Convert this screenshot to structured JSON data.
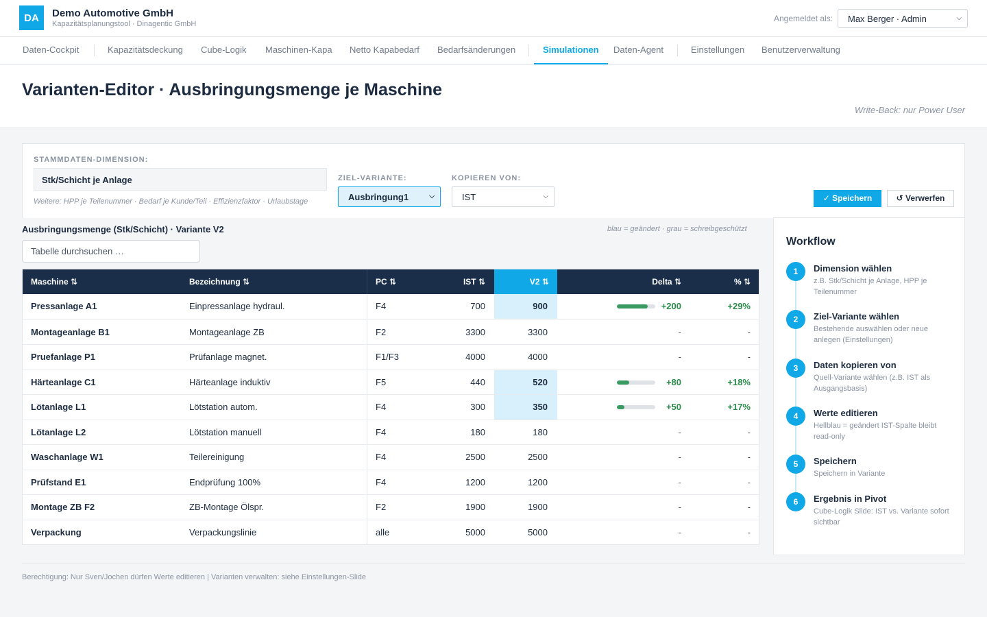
{
  "header": {
    "logo": "DA",
    "company": "Demo Automotive GmbH",
    "subtitle": "Kapazitätsplanungstool · Dinagentic GmbH",
    "login_label": "Angemeldet als:",
    "user": "Max Berger · Admin"
  },
  "nav": {
    "items": [
      {
        "label": "Daten-Cockpit"
      },
      {
        "label": "Kapazitätsdeckung"
      },
      {
        "label": "Cube-Logik"
      },
      {
        "label": "Maschinen-Kapa"
      },
      {
        "label": "Netto Kapabedarf"
      },
      {
        "label": "Bedarfsänderungen"
      },
      {
        "label": "Simulationen"
      },
      {
        "label": "Daten-Agent"
      },
      {
        "label": "Einstellungen"
      },
      {
        "label": "Benutzerverwaltung"
      }
    ],
    "active": "Simulationen"
  },
  "page": {
    "title": "Varianten-Editor · Ausbringungsmenge je Maschine",
    "writeback": "Write-Back: nur Power User"
  },
  "controls": {
    "dim_label": "STAMMDATEN-DIMENSION:",
    "dim_value": "Stk/Schicht je Anlage",
    "dim_hint": "Weitere: HPP je Teilenummer · Bedarf je Kunde/Teil · Effizienzfaktor · Urlaubstage",
    "target_label": "ZIEL-VARIANTE:",
    "target_value": "Ausbringung1",
    "copy_label": "KOPIEREN VON:",
    "copy_value": "IST",
    "save": "✓ Speichern",
    "discard": "↺ Verwerfen"
  },
  "table": {
    "title": "Ausbringungsmenge (Stk/Schicht) · Variante V2",
    "legend": "blau = geändert · grau = schreibgeschützt",
    "search_placeholder": "Tabelle durchsuchen …",
    "headers": {
      "maschine": "Maschine ⇅",
      "bezeichnung": "Bezeichnung ⇅",
      "pc": "PC ⇅",
      "ist": "IST ⇅",
      "v2": "V2 ⇅",
      "delta": "Delta ⇅",
      "pct": "% ⇅"
    },
    "rows": [
      {
        "maschine": "Pressanlage A1",
        "bezeichnung": "Einpressanlage hydraul.",
        "pc": "F4",
        "ist": "700",
        "v2": "900",
        "delta": "+200",
        "pct": "+29%",
        "changed": true,
        "bar": 0.8
      },
      {
        "maschine": "Montageanlage B1",
        "bezeichnung": "Montageanlage ZB",
        "pc": "F2",
        "ist": "3300",
        "v2": "3300",
        "delta": "-",
        "pct": "-",
        "changed": false,
        "bar": 0
      },
      {
        "maschine": "Pruefanlage P1",
        "bezeichnung": "Prüfanlage magnet.",
        "pc": "F1/F3",
        "ist": "4000",
        "v2": "4000",
        "delta": "-",
        "pct": "-",
        "changed": false,
        "bar": 0
      },
      {
        "maschine": "Härteanlage C1",
        "bezeichnung": "Härteanlage induktiv",
        "pc": "F5",
        "ist": "440",
        "v2": "520",
        "delta": "+80",
        "pct": "+18%",
        "changed": true,
        "bar": 0.32
      },
      {
        "maschine": "Lötanlage L1",
        "bezeichnung": "Lötstation autom.",
        "pc": "F4",
        "ist": "300",
        "v2": "350",
        "delta": "+50",
        "pct": "+17%",
        "changed": true,
        "bar": 0.2
      },
      {
        "maschine": "Lötanlage L2",
        "bezeichnung": "Lötstation manuell",
        "pc": "F4",
        "ist": "180",
        "v2": "180",
        "delta": "-",
        "pct": "-",
        "changed": false,
        "bar": 0
      },
      {
        "maschine": "Waschanlage W1",
        "bezeichnung": "Teilereinigung",
        "pc": "F4",
        "ist": "2500",
        "v2": "2500",
        "delta": "-",
        "pct": "-",
        "changed": false,
        "bar": 0
      },
      {
        "maschine": "Prüfstand E1",
        "bezeichnung": "Endprüfung 100%",
        "pc": "F4",
        "ist": "1200",
        "v2": "1200",
        "delta": "-",
        "pct": "-",
        "changed": false,
        "bar": 0
      },
      {
        "maschine": "Montage ZB F2",
        "bezeichnung": "ZB-Montage Ölspr.",
        "pc": "F2",
        "ist": "1900",
        "v2": "1900",
        "delta": "-",
        "pct": "-",
        "changed": false,
        "bar": 0
      },
      {
        "maschine": "Verpackung",
        "bezeichnung": "Verpackungslinie",
        "pc": "alle",
        "ist": "5000",
        "v2": "5000",
        "delta": "-",
        "pct": "-",
        "changed": false,
        "bar": 0
      }
    ]
  },
  "workflow": {
    "title": "Workflow",
    "steps": [
      {
        "num": "1",
        "title": "Dimension wählen",
        "desc": "z.B. Stk/Schicht je Anlage, HPP je Teilenummer"
      },
      {
        "num": "2",
        "title": "Ziel-Variante wählen",
        "desc": "Bestehende auswählen oder neue anlegen (Einstellungen)"
      },
      {
        "num": "3",
        "title": "Daten kopieren von",
        "desc": "Quell-Variante wählen (z.B. IST als Ausgangsbasis)"
      },
      {
        "num": "4",
        "title": "Werte editieren",
        "desc": "Hellblau = geändert IST-Spalte bleibt read-only"
      },
      {
        "num": "5",
        "title": "Speichern",
        "desc": "Speichern in Variante"
      },
      {
        "num": "6",
        "title": "Ergebnis in Pivot",
        "desc": "Cube-Logik Slide: IST vs. Variante sofort sichtbar"
      }
    ]
  },
  "footer": "Berechtigung: Nur Sven/Jochen dürfen Werte editieren | Varianten verwalten: siehe Einstellungen-Slide"
}
